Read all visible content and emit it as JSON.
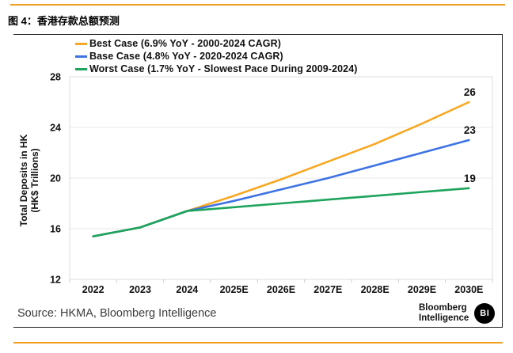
{
  "page": {
    "title": "图 4：香港存款总额预测",
    "source": "Source: HKMA, Bloomberg Intelligence",
    "accent_color": "#EF9E1D",
    "logo": {
      "line1": "Bloomberg",
      "line2": "Intelligence",
      "badge": "BI"
    }
  },
  "chart_data": {
    "type": "line",
    "categories": [
      "2022",
      "2023",
      "2024",
      "2025E",
      "2026E",
      "2027E",
      "2028E",
      "2029E",
      "2030E"
    ],
    "series": [
      {
        "name": "Best Case (6.9% YoY - 2000-2024 CAGR)",
        "color": "#F7A823",
        "values": [
          15.4,
          16.1,
          17.4,
          18.6,
          19.9,
          21.3,
          22.7,
          24.3,
          26.0
        ],
        "end_label": "26"
      },
      {
        "name": "Base Case (4.8% YoY - 2020-2024 CAGR)",
        "color": "#3D73E3",
        "values": [
          15.4,
          16.1,
          17.4,
          18.2,
          19.1,
          20.0,
          21.0,
          22.0,
          23.0
        ],
        "end_label": "23"
      },
      {
        "name": "Worst Case (1.7% YoY - Slowest Pace During 2009-2024)",
        "color": "#1EA45C",
        "values": [
          15.4,
          16.1,
          17.4,
          17.7,
          18.0,
          18.3,
          18.6,
          18.9,
          19.2
        ],
        "end_label": "19"
      }
    ],
    "ylabel_line1": "Total Deposits in HK",
    "ylabel_line2": "(HK$ Trillions)",
    "yticks": [
      12,
      16,
      20,
      24,
      28
    ],
    "ylim": [
      12,
      28
    ],
    "grid": true,
    "legend_position": "top-left",
    "gridline_color": "#e9e9e9",
    "plot_border_color": "#dedede",
    "tick_mark_color": "#cccccc"
  }
}
